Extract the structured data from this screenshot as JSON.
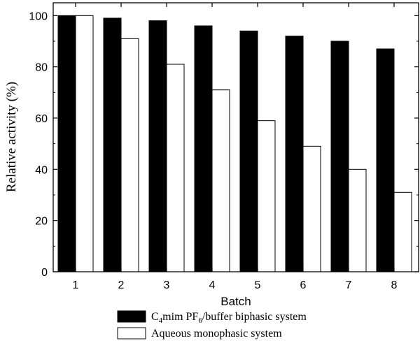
{
  "chart_data": {
    "type": "bar",
    "categories": [
      "1",
      "2",
      "3",
      "4",
      "5",
      "6",
      "7",
      "8"
    ],
    "series": [
      {
        "name": "C4mim PF6/buffer biphasic system",
        "values": [
          100,
          99,
          98,
          96,
          94,
          92,
          90,
          87
        ],
        "color": "#000000"
      },
      {
        "name": "Aqueous monophasic system",
        "values": [
          100,
          91,
          81,
          71,
          59,
          49,
          40,
          31
        ],
        "color": "#ffffff"
      }
    ],
    "title": "",
    "xlabel": "Batch",
    "ylabel": "Relative activity (%)",
    "ylim": [
      0,
      105
    ],
    "yticks": [
      "0",
      "20",
      "40",
      "60",
      "80",
      "100"
    ],
    "legend_position": "bottom-center",
    "grid": false
  },
  "legend": {
    "biphasic": {
      "c": "C",
      "sub1": "4",
      "mid": "mim PF",
      "sub2": "6",
      "tail": "/buffer biphasic system"
    },
    "aqueous": "Aqueous monophasic system"
  }
}
